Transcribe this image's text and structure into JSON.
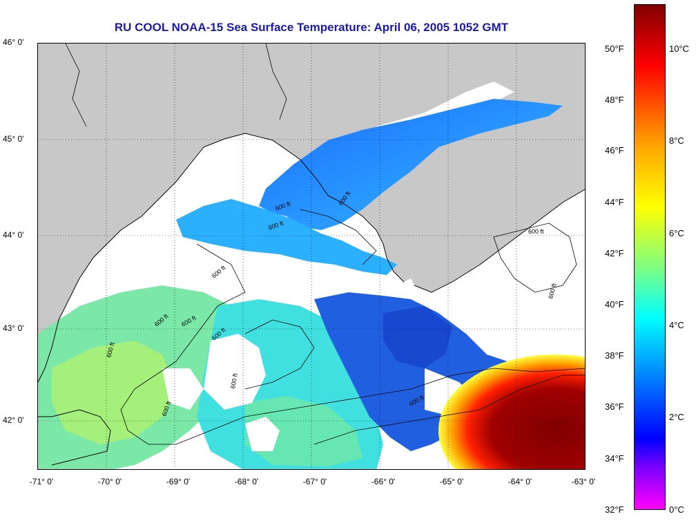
{
  "title": "RU COOL  NOAA-15  Sea Surface Temperature:  April 06, 2005 1052 GMT",
  "lat_labels": [
    "46° 0'",
    "45° 0'",
    "44° 0'",
    "43° 0'",
    "42° 0'"
  ],
  "lon_labels": [
    "-71° 0'",
    "-70° 0'",
    "-69° 0'",
    "-68° 0'",
    "-67° 0'",
    "-66° 0'",
    "-65° 0'",
    "-64° 0'",
    "-63° 0'"
  ],
  "colorbar": {
    "fahrenheit_ticks": [
      "50°F",
      "48°F",
      "46°F",
      "44°F",
      "42°F",
      "40°F",
      "38°F",
      "36°F",
      "34°F",
      "32°F"
    ],
    "celsius_ticks": [
      "10°C",
      "8°C",
      "6°C",
      "4°C",
      "2°C",
      "0°C"
    ],
    "colors": [
      "#800000",
      "#ff0000",
      "#ffa500",
      "#ffff00",
      "#7fff7f",
      "#00ffff",
      "#0080ff",
      "#0000ff",
      "#8000ff",
      "#ff00ff"
    ]
  },
  "contour_labels": [
    "600 ft",
    "600 ft",
    "600 ft",
    "600 ft",
    "600 ft",
    "600 ft",
    "600 ft",
    "600 ft",
    "600 ft",
    "600 ft",
    "600 ft",
    "600 ft",
    "600 ft"
  ],
  "colors": {
    "land": "#c8c8c8",
    "no_data": "#ffffff",
    "title": "#1a1aa6"
  }
}
